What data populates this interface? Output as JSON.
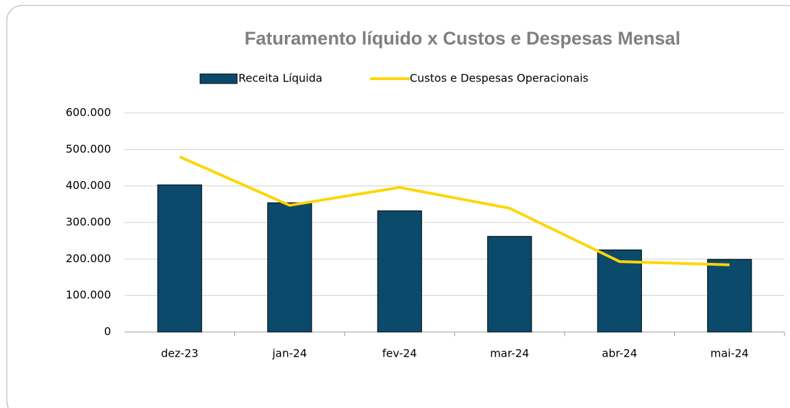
{
  "chart_data": {
    "type": "combo",
    "title": "Faturamento líquido x Custos e Despesas Mensal",
    "categories": [
      "dez-23",
      "jan-24",
      "fev-24",
      "mar-24",
      "abr-24",
      "mai-24"
    ],
    "series": [
      {
        "name": "Receita Líquida",
        "type": "bar",
        "color": "#0b4a6b",
        "values": [
          403000,
          354000,
          332000,
          262000,
          225000,
          199000
        ]
      },
      {
        "name": "Custos e Despesas Operacionais",
        "type": "line",
        "color": "#ffd500",
        "values": [
          480000,
          347000,
          396000,
          339000,
          193000,
          184000
        ]
      }
    ],
    "ylim": [
      0,
      600000
    ],
    "yticks": [
      0,
      {
        "value": 100000,
        "label": "100.000"
      },
      {
        "value": 200000,
        "label": "200.000"
      },
      {
        "value": 300000,
        "label": "300.000"
      },
      {
        "value": 400000,
        "label": "400.000"
      },
      {
        "value": 500000,
        "label": "500.000"
      },
      {
        "value": 600000,
        "label": "600.000"
      }
    ],
    "grid": true,
    "legend": "top"
  }
}
